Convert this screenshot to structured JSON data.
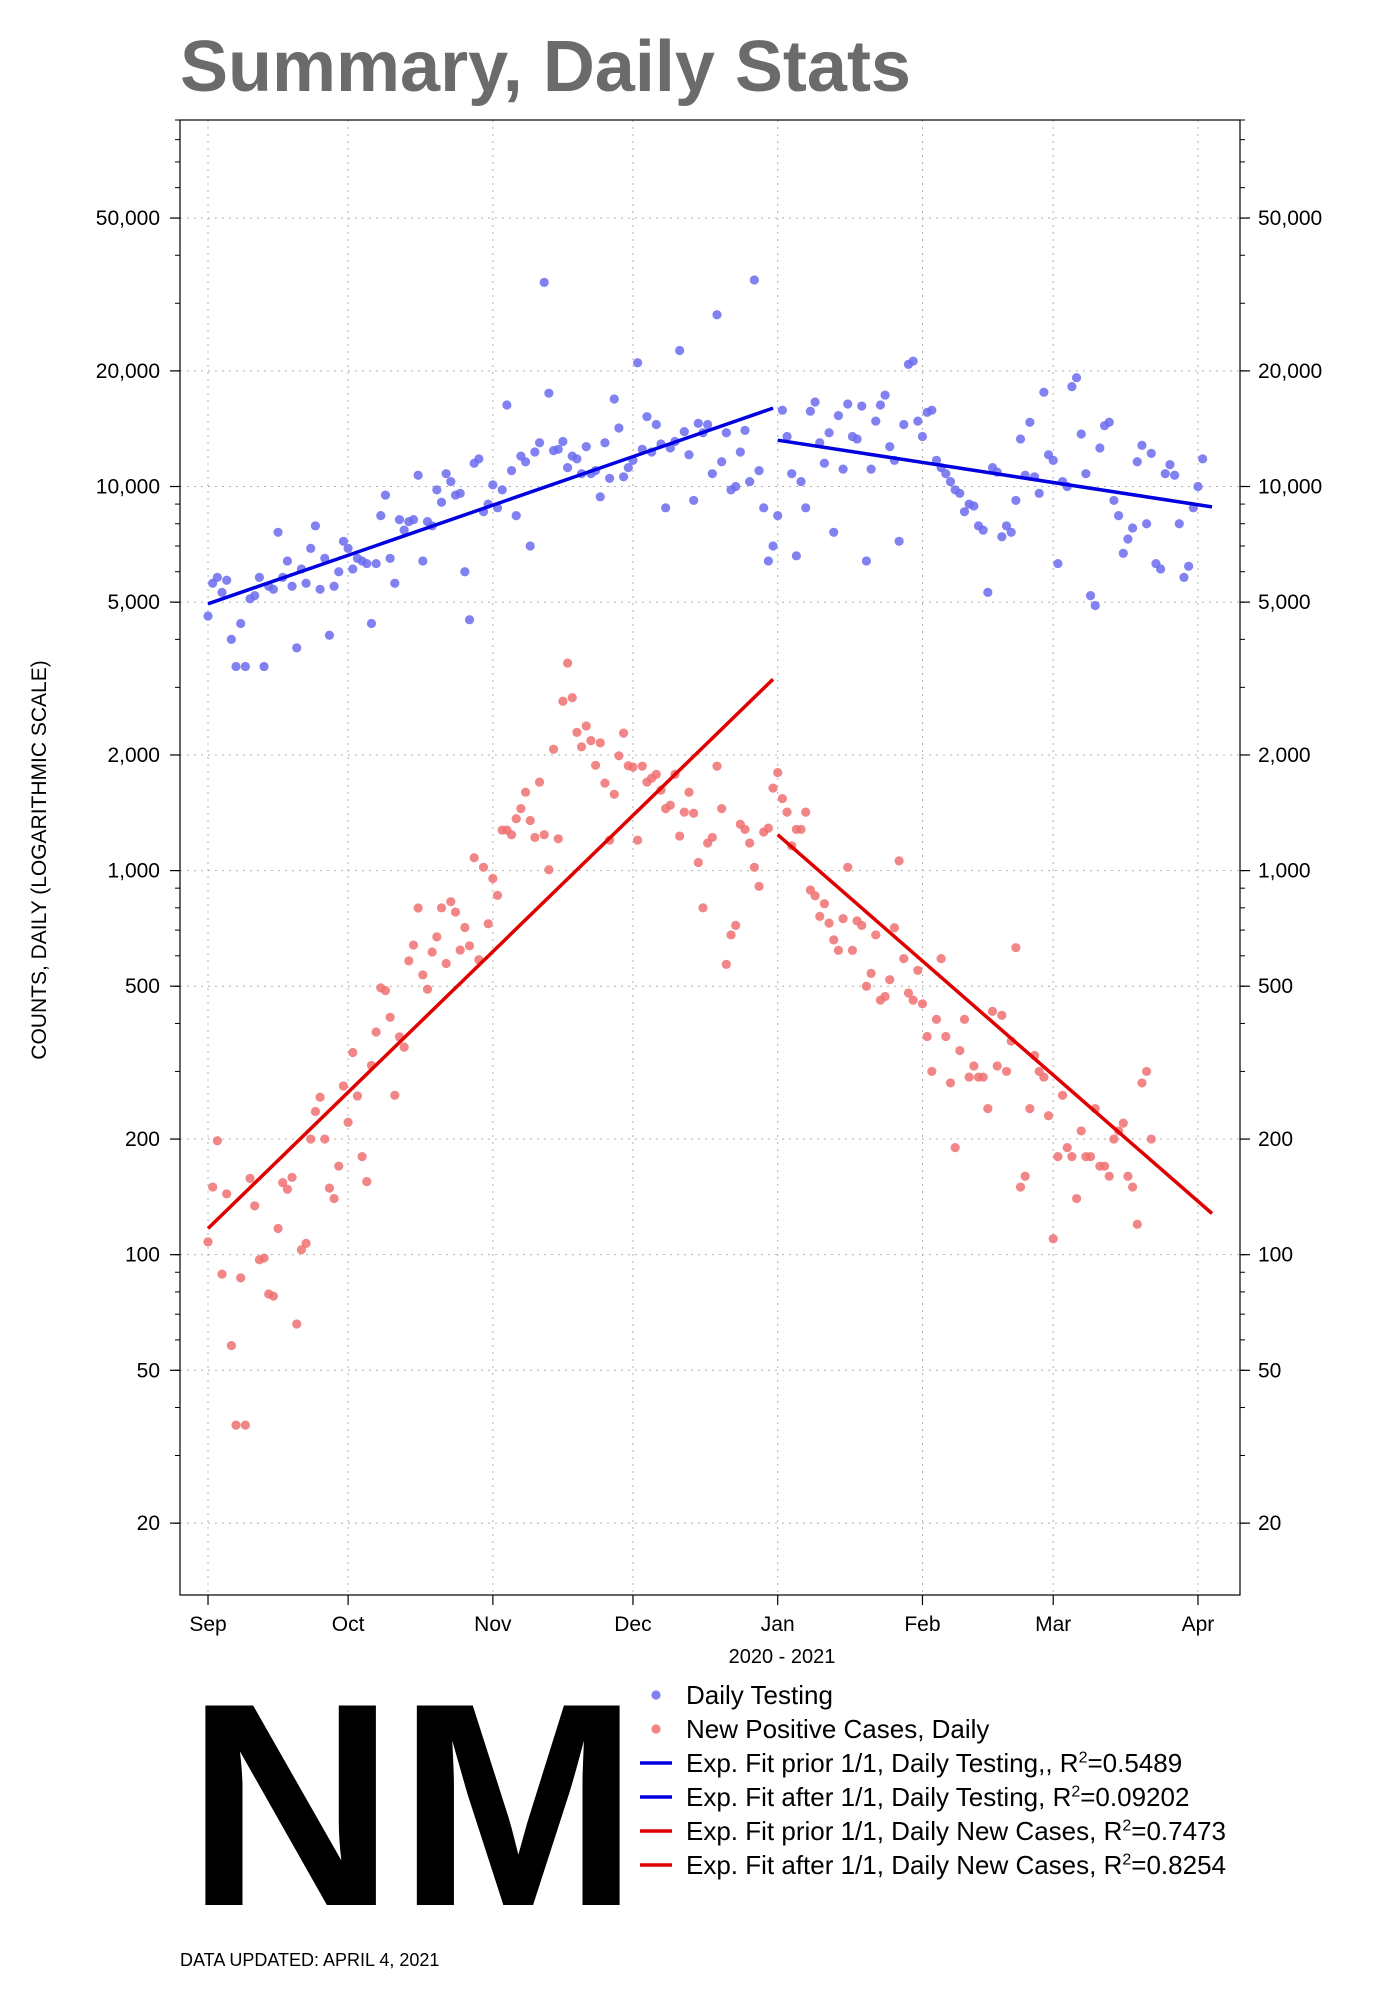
{
  "header": {
    "title": "Summary, Daily Stats"
  },
  "state_label": "NM",
  "footer": {
    "updated": "DATA UPDATED: APRIL 4, 2021"
  },
  "colors": {
    "testing_points": "#6b6bf0",
    "cases_points": "#f07070",
    "testing_fit": "#0000e0",
    "cases_fit": "#e00000",
    "grid": "#b0b0b0",
    "title": "#6b6b6b"
  },
  "chart_data": {
    "type": "scatter",
    "title": "Summary, Daily Stats",
    "xlabel": "2020 - 2021",
    "ylabel": "COUNTS, DAILY (LOGARITHMIC SCALE)",
    "yscale": "log",
    "xlim": [
      "2020-08-26",
      "2021-04-10"
    ],
    "ylim": [
      13,
      90000
    ],
    "grid": true,
    "legend_position": "bottom-right",
    "x_ticks": [
      {
        "date": "2020-09-01",
        "label": "Sep"
      },
      {
        "date": "2020-10-01",
        "label": "Oct"
      },
      {
        "date": "2020-11-01",
        "label": "Nov"
      },
      {
        "date": "2020-12-01",
        "label": "Dec"
      },
      {
        "date": "2021-01-01",
        "label": "Jan"
      },
      {
        "date": "2021-02-01",
        "label": "Feb"
      },
      {
        "date": "2021-03-01",
        "label": "Mar"
      },
      {
        "date": "2021-04-01",
        "label": "Apr"
      }
    ],
    "y_ticks": [
      {
        "value": 20,
        "label": "20"
      },
      {
        "value": 50,
        "label": "50"
      },
      {
        "value": 100,
        "label": "100"
      },
      {
        "value": 200,
        "label": "200"
      },
      {
        "value": 500,
        "label": "500"
      },
      {
        "value": 1000,
        "label": "1,000"
      },
      {
        "value": 2000,
        "label": "2,000"
      },
      {
        "value": 5000,
        "label": "5,000"
      },
      {
        "value": 10000,
        "label": "10,000"
      },
      {
        "value": 20000,
        "label": "20,000"
      },
      {
        "value": 50000,
        "label": "50,000"
      }
    ],
    "series": [
      {
        "name": "Daily Testing",
        "kind": "points",
        "color": "#6b6bf0",
        "start_date": "2020-09-01",
        "values": [
          4600,
          5600,
          5800,
          5300,
          5700,
          4000,
          3400,
          4400,
          3400,
          5100,
          5200,
          5800,
          3400,
          5500,
          5400,
          7600,
          5800,
          6400,
          5500,
          3800,
          6100,
          5600,
          6900,
          7900,
          5400,
          6500,
          4100,
          5500,
          6000,
          7200,
          6900,
          6100,
          6500,
          6400,
          6300,
          4400,
          6300,
          8400,
          9500,
          6500,
          5600,
          8200,
          7700,
          8100,
          8200,
          10700,
          6400,
          8100,
          7900,
          9800,
          9100,
          10800,
          10300,
          9500,
          9600,
          6000,
          4500,
          11500,
          11800,
          8600,
          9000,
          10100,
          8800,
          9800,
          16300,
          11000,
          8400,
          12000,
          11600,
          7000,
          12300,
          13000,
          34000,
          17500,
          12400,
          12500,
          13100,
          11200,
          12000,
          11800,
          10800,
          12700,
          10800,
          11000,
          9400,
          13000,
          10500,
          16900,
          14200,
          10600,
          11200,
          11700,
          21000,
          12500,
          15200,
          12300,
          14500,
          12900,
          8800,
          12600,
          13100,
          22600,
          13900,
          12100,
          9200,
          14600,
          13800,
          14500,
          10800,
          28000,
          11600,
          13800,
          9800,
          10000,
          12300,
          14000,
          10300,
          34500,
          11000,
          8800,
          6400,
          7000,
          8400,
          15800,
          13500,
          10800,
          6600,
          10300,
          8800,
          15700,
          16600,
          13000,
          11500,
          13800,
          7600,
          15300,
          11100,
          16400,
          13500,
          13300,
          16200,
          6400,
          11100,
          14800,
          16300,
          17300,
          12700,
          11700,
          7200,
          14500,
          20800,
          21200,
          14800,
          13500,
          15600,
          15800,
          11700,
          11200,
          10800,
          10300,
          9800,
          9600,
          8600,
          9000,
          8900,
          7900,
          7700,
          5300,
          11200,
          10900,
          7400,
          7900,
          7600,
          9200,
          13300,
          10700,
          14700,
          10600,
          9600,
          17600,
          12100,
          11700,
          6300,
          10300,
          10000,
          18200,
          19200,
          13700,
          10800,
          5200,
          4900,
          12600,
          14400,
          14700,
          9200,
          8400,
          6700,
          7300,
          7800,
          11600,
          12800,
          8000,
          12200,
          6300,
          6100,
          10800,
          11400,
          10700,
          8000,
          5800,
          6200,
          8800,
          10000,
          11800
        ]
      },
      {
        "name": "New Positive Cases, Daily",
        "kind": "points",
        "color": "#f07070",
        "start_date": "2020-09-01",
        "values": [
          108,
          150,
          198,
          89,
          144,
          58,
          36,
          87,
          36,
          158,
          134,
          97,
          98,
          79,
          78,
          117,
          154,
          148,
          159,
          66,
          103,
          107,
          200,
          236,
          257,
          200,
          149,
          140,
          170,
          275,
          221,
          336,
          259,
          180,
          155,
          311,
          380,
          495,
          487,
          415,
          260,
          369,
          347,
          582,
          640,
          799,
          535,
          491,
          614,
          672,
          800,
          573,
          830,
          780,
          621,
          711,
          637,
          1080,
          586,
          1020,
          727,
          954,
          862,
          1275,
          1275,
          1240,
          1365,
          1450,
          1600,
          1350,
          1220,
          1700,
          1240,
          1005,
          2070,
          1210,
          2760,
          3470,
          2820,
          2290,
          2100,
          2380,
          2180,
          1880,
          2150,
          1690,
          1200,
          1580,
          1990,
          2280,
          1875,
          1860,
          1200,
          1870,
          1700,
          1740,
          1780,
          1620,
          1450,
          1480,
          1780,
          1230,
          1420,
          1600,
          1410,
          1050,
          800,
          1180,
          1220,
          1870,
          1450,
          570,
          680,
          720,
          1320,
          1280,
          1180,
          1020,
          910,
          1260,
          1290,
          1640,
          1800,
          1540,
          1420,
          1160,
          1280,
          1280,
          1420,
          890,
          860,
          760,
          820,
          730,
          660,
          620,
          750,
          1020,
          620,
          740,
          720,
          500,
          540,
          680,
          460,
          470,
          520,
          710,
          1060,
          590,
          480,
          460,
          550,
          450,
          370,
          300,
          410,
          590,
          370,
          280,
          190,
          340,
          410,
          290,
          310,
          290,
          290,
          240,
          430,
          310,
          420,
          300,
          360,
          630,
          150,
          160,
          240,
          330,
          300,
          290,
          230,
          110,
          180,
          260,
          190,
          180,
          140,
          210,
          180,
          180,
          240,
          170,
          170,
          160,
          200,
          210,
          220,
          160,
          150,
          120,
          280,
          300,
          200
        ]
      },
      {
        "name": "Exp. Fit prior 1/1, Daily Testing,",
        "kind": "fit",
        "color": "#0000e0",
        "r2": "0.5489",
        "x": [
          "2020-09-01",
          "2020-12-31"
        ],
        "y": [
          4950,
          16000
        ]
      },
      {
        "name": "Exp. Fit after 1/1, Daily Testing",
        "kind": "fit",
        "color": "#0000e0",
        "r2": "0.09202",
        "x": [
          "2021-01-01",
          "2021-04-04"
        ],
        "y": [
          13200,
          8850
        ]
      },
      {
        "name": "Exp. Fit prior 1/1, Daily New Cases",
        "kind": "fit",
        "color": "#e00000",
        "r2": "0.7473",
        "x": [
          "2020-09-01",
          "2020-12-31"
        ],
        "y": [
          117,
          3150
        ]
      },
      {
        "name": "Exp. Fit after 1/1, Daily New Cases",
        "kind": "fit",
        "color": "#e00000",
        "r2": "0.8254",
        "x": [
          "2021-01-01",
          "2021-04-04"
        ],
        "y": [
          1240,
          128
        ]
      }
    ],
    "legend": [
      {
        "label": "Daily Testing",
        "kind": "point",
        "color": "#6b6bf0",
        "r2": ""
      },
      {
        "label": "New Positive Cases, Daily",
        "kind": "point",
        "color": "#f07070",
        "r2": ""
      },
      {
        "label": "Exp. Fit prior 1/1, Daily Testing,, R",
        "kind": "line",
        "color": "#0000e0",
        "r2": "=0.5489"
      },
      {
        "label": "Exp. Fit after 1/1, Daily Testing, R",
        "kind": "line",
        "color": "#0000e0",
        "r2": "=0.09202"
      },
      {
        "label": "Exp. Fit prior 1/1, Daily New Cases, R",
        "kind": "line",
        "color": "#e00000",
        "r2": "=0.7473"
      },
      {
        "label": "Exp. Fit after 1/1, Daily New Cases, R",
        "kind": "line",
        "color": "#e00000",
        "r2": "=0.8254"
      }
    ]
  }
}
